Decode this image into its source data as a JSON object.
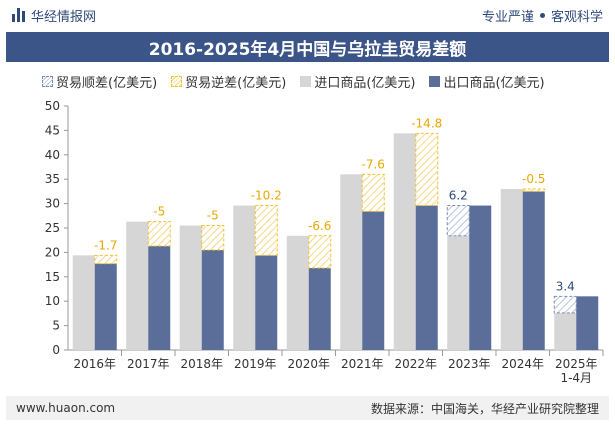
{
  "header": {
    "brand": "华经情报网",
    "slogan_left": "专业严谨",
    "slogan_right": "客观科学"
  },
  "title": "2016-2025年4月中国与乌拉圭贸易差额",
  "legend": {
    "surplus": "贸易顺差(亿美元)",
    "deficit": "贸易逆差(亿美元)",
    "import": "进口商品(亿美元)",
    "export": "出口商品(亿美元)"
  },
  "footer": {
    "website": "www.huaon.com",
    "source": "数据来源：中国海关，华经产业研究院整理"
  },
  "colors": {
    "title_bg": "#3c5589",
    "import": "#d6d6d6",
    "export": "#5b6e9a",
    "surplus": "#7a8db5",
    "deficit": "#f2c030",
    "label": "#e8a900",
    "surplus_label": "#2f4a7a"
  },
  "chart_data": {
    "type": "bar",
    "categories": [
      "2016年",
      "2017年",
      "2018年",
      "2019年",
      "2020年",
      "2021年",
      "2022年",
      "2023年",
      "2024年",
      "2025年\n1-4月"
    ],
    "series": [
      {
        "name": "进口商品(亿美元)",
        "values": [
          19.4,
          26.3,
          25.5,
          29.6,
          23.4,
          36.0,
          44.4,
          23.4,
          33.0,
          7.6
        ]
      },
      {
        "name": "出口商品(亿美元)",
        "values": [
          17.7,
          21.3,
          20.5,
          19.4,
          16.8,
          28.4,
          29.6,
          29.6,
          32.5,
          11.0
        ]
      }
    ],
    "balance": [
      -1.7,
      -5,
      -5,
      -10.2,
      -6.6,
      -7.6,
      -14.8,
      6.2,
      -0.5,
      3.4
    ],
    "balance_labels": [
      "-1.7",
      "-5",
      "-5",
      "-10.2",
      "-6.6",
      "-7.6",
      "-14.8",
      "6.2",
      "-0.5",
      "3.4"
    ],
    "yticks": [
      "0",
      "5",
      "10",
      "15",
      "20",
      "25",
      "30",
      "35",
      "40",
      "45",
      "50"
    ],
    "ylim": [
      0,
      50
    ],
    "xlabel": "",
    "ylabel": "",
    "grid": false,
    "legend_position": "top-left"
  }
}
